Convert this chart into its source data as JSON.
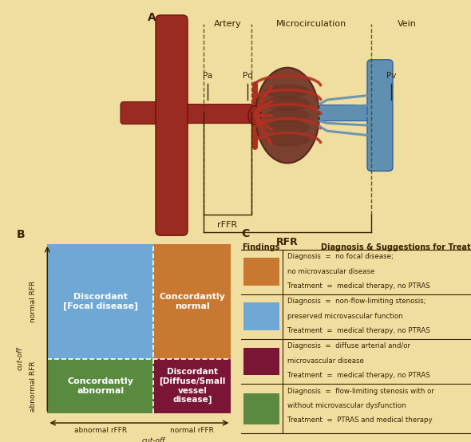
{
  "bg_color": "#f0dea0",
  "panel_A_label": "A",
  "panel_B_label": "B",
  "panel_C_label": "C",
  "artery_label": "Artery",
  "micro_label": "Microcirculation",
  "vein_label": "Vein",
  "pa_label": "Pa",
  "pd_label": "Pd",
  "pv_label": "Pv",
  "rffr_label": "rFFR",
  "rfr_label": "RFR",
  "quadrant_colors": {
    "top_left": "#6fa8d4",
    "top_right": "#c87830",
    "bottom_left": "#5a8a40",
    "bottom_right": "#7a1535"
  },
  "quadrant_labels": {
    "top_left": "Discordant\n[Focal disease]",
    "top_right": "Concordantly\nnormal",
    "bottom_left": "Concordantly\nabnormal",
    "bottom_right": "Discordant\n[Diffuse/Small\nvessel\ndisease]"
  },
  "y_label_top": "normal RFR",
  "y_label_bottom": "abnormal RFR",
  "x_label_left": "abnormal rFFR",
  "x_label_right": "normal rFFR",
  "cutoff_x": "cut-off",
  "cutoff_y": "cut-off",
  "findings_header": "Findings",
  "diagnosis_header": "Diagnosis & Suggestions for Treatment",
  "legend_colors": [
    "#c87830",
    "#6fa8d4",
    "#7a1535",
    "#5a8a40"
  ],
  "legend_entries": [
    {
      "d1": "Diagnosis  =  no focal disease;",
      "d2": "no microvascular disease",
      "t": "Treatment  =  medical therapy, no PTRAS"
    },
    {
      "d1": "Diagnosis  =  non-flow-limiting stenosis;",
      "d2": "preserved microvascular function",
      "t": "Treatment  =  medical therapy, no PTRAS"
    },
    {
      "d1": "Diagnosis  =  diffuse arterial and/or",
      "d2": "microvascular disease",
      "t": "Treatment  =  medical therapy, no PTRAS"
    },
    {
      "d1": "Diagnosis  =  flow-limiting stenosis with or",
      "d2": "without microvascular dysfunction",
      "t": "Treatment  =  PTRAS and medical therapy"
    }
  ],
  "text_dark": "#3a2000",
  "text_white": "#ffffff",
  "aorta_color": "#9b2a20",
  "aorta_edge": "#6b1210",
  "kidney_color": "#7a4030",
  "kidney_dark": "#5a2818",
  "kidney_mid": "#8a5040",
  "vein_color": "#6090b0",
  "vein_dark": "#3060a0",
  "art_line_color": "#b03020"
}
